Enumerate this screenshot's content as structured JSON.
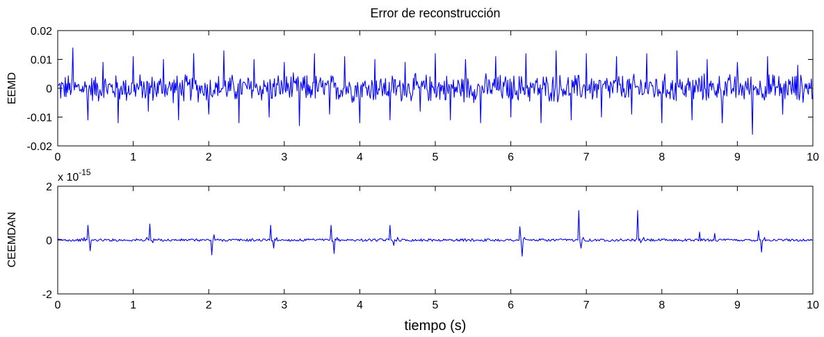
{
  "chart_data": [
    {
      "type": "line",
      "title": "Error de reconstrucción",
      "xlabel": "",
      "ylabel": "EEMD",
      "xlim": [
        0,
        10
      ],
      "ylim": [
        -0.02,
        0.02
      ],
      "xticks": [
        "0",
        "1",
        "2",
        "3",
        "4",
        "5",
        "6",
        "7",
        "8",
        "9",
        "10"
      ],
      "yticks": [
        "-0.02",
        "-0.01",
        "0",
        "0.01",
        "0.02"
      ],
      "exponent_label": "",
      "grid": false,
      "color": "#0000ff",
      "series": [
        {
          "x": [
            0,
            0.2,
            0.4,
            0.6,
            0.8,
            1.0,
            1.2,
            1.4,
            1.6,
            1.8,
            2.0,
            2.2,
            2.4,
            2.6,
            2.8,
            3.0,
            3.2,
            3.4,
            3.6,
            3.8,
            4.0,
            4.2,
            4.4,
            4.6,
            4.8,
            5.0,
            5.2,
            5.4,
            5.6,
            5.8,
            6.0,
            6.2,
            6.4,
            6.6,
            6.8,
            7.0,
            7.2,
            7.4,
            7.6,
            7.8,
            8.0,
            8.2,
            8.4,
            8.6,
            8.8,
            9.0,
            9.2,
            9.4,
            9.6,
            9.8,
            10.0
          ],
          "values": [
            0.001,
            0.014,
            -0.011,
            0.009,
            -0.012,
            0.011,
            -0.008,
            0.01,
            -0.011,
            0.012,
            -0.009,
            0.013,
            -0.012,
            0.01,
            -0.01,
            0.009,
            -0.013,
            0.012,
            -0.009,
            0.011,
            -0.012,
            0.01,
            -0.011,
            0.009,
            -0.008,
            0.012,
            -0.011,
            0.01,
            -0.012,
            0.011,
            -0.01,
            0.012,
            -0.012,
            0.013,
            -0.011,
            0.012,
            -0.01,
            0.011,
            -0.009,
            0.012,
            -0.012,
            0.013,
            -0.011,
            0.01,
            -0.012,
            0.009,
            -0.016,
            0.011,
            -0.009,
            0.008,
            -0.002
          ]
        }
      ]
    },
    {
      "type": "line",
      "title": "",
      "xlabel": "tiempo (s)",
      "ylabel": "CEEMDAN",
      "xlim": [
        0,
        10
      ],
      "ylim": [
        -2,
        2
      ],
      "xticks": [
        "0",
        "1",
        "2",
        "3",
        "4",
        "5",
        "6",
        "7",
        "8",
        "9",
        "10"
      ],
      "yticks": [
        "-2",
        "0",
        "2"
      ],
      "exponent_label": "x 10",
      "exponent_value": "-15",
      "grid": false,
      "color": "#0000ff",
      "series": [
        {
          "x": [
            0,
            0.35,
            0.4,
            0.43,
            1.18,
            1.22,
            1.26,
            2.04,
            2.07,
            2.82,
            2.86,
            2.9,
            3.62,
            3.66,
            3.7,
            4.4,
            4.45,
            4.5,
            6.12,
            6.15,
            6.18,
            6.9,
            6.93,
            6.96,
            7.68,
            7.72,
            7.76,
            8.5,
            8.7,
            9.28,
            9.32,
            9.36,
            10.0
          ],
          "values": [
            0,
            0.1,
            0.55,
            -0.4,
            0.1,
            0.6,
            -0.1,
            -0.55,
            0.2,
            0.55,
            -0.3,
            0.1,
            0.55,
            -0.5,
            0.1,
            0.55,
            -0.2,
            0.1,
            0.5,
            -0.6,
            0.1,
            1.1,
            -0.3,
            0.1,
            1.1,
            -0.1,
            0.1,
            0.3,
            0.25,
            0.35,
            -0.45,
            0.1,
            0
          ]
        }
      ]
    }
  ]
}
